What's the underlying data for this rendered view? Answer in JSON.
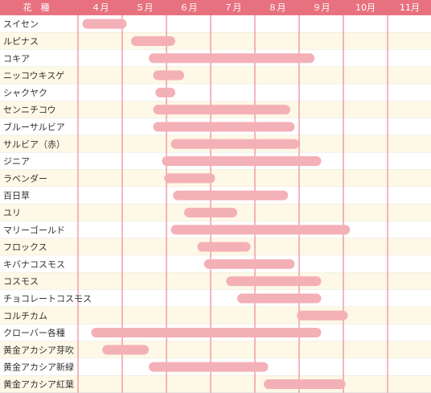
{
  "chart_data": {
    "type": "bar",
    "header_label": "花　種",
    "months": [
      "４月",
      "５月",
      "６月",
      "７月",
      "８月",
      "９月",
      "10月",
      "11月"
    ],
    "series": [
      {
        "label": "スイセン",
        "start": 4.1,
        "end": 5.1
      },
      {
        "label": "ルピナス",
        "start": 5.2,
        "end": 6.2
      },
      {
        "label": "コキア",
        "start": 5.6,
        "end": 9.35
      },
      {
        "label": "ニッコウキスゲ",
        "start": 5.7,
        "end": 6.4
      },
      {
        "label": "シャクヤク",
        "start": 5.75,
        "end": 6.2
      },
      {
        "label": "センニチコウ",
        "start": 5.7,
        "end": 8.8
      },
      {
        "label": "ブルーサルビア",
        "start": 5.7,
        "end": 8.9
      },
      {
        "label": "サルビア（赤）",
        "start": 6.1,
        "end": 9.0
      },
      {
        "label": "ジニア",
        "start": 5.9,
        "end": 9.5
      },
      {
        "label": "ラベンダー",
        "start": 5.95,
        "end": 7.1
      },
      {
        "label": "百日草",
        "start": 6.15,
        "end": 8.75
      },
      {
        "label": "ユリ",
        "start": 6.4,
        "end": 7.6
      },
      {
        "label": "マリーゴールド",
        "start": 6.1,
        "end": 10.15
      },
      {
        "label": "フロックス",
        "start": 6.7,
        "end": 7.9
      },
      {
        "label": "キバナコスモス",
        "start": 6.85,
        "end": 8.9
      },
      {
        "label": "コスモス",
        "start": 7.35,
        "end": 9.5
      },
      {
        "label": "チョコレートコスモス",
        "start": 7.6,
        "end": 9.5
      },
      {
        "label": "コルチカム",
        "start": 8.95,
        "end": 10.1
      },
      {
        "label": "クローバー各種",
        "start": 4.3,
        "end": 9.5
      },
      {
        "label": "黄金アカシア芽吹",
        "start": 4.55,
        "end": 5.6
      },
      {
        "label": "黄金アカシア新緑",
        "start": 5.6,
        "end": 8.3
      },
      {
        "label": "黄金アカシア紅葉",
        "start": 8.2,
        "end": 10.05
      }
    ]
  },
  "colors": {
    "header_bg": "#e8717f",
    "row_alt": "#fef8e6",
    "row_plain": "#ffffff",
    "bar": "#f4b0b7",
    "grid": "#e8717f",
    "separator": "#d8d8d8"
  }
}
